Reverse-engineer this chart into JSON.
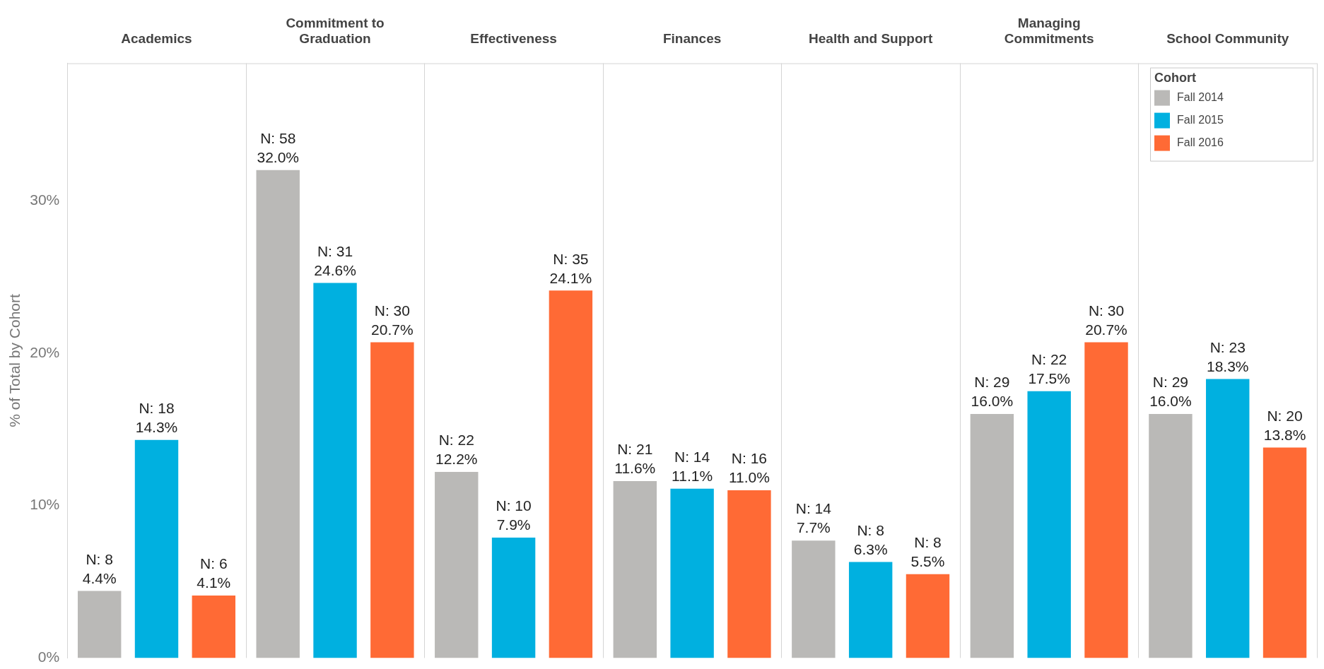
{
  "chart_data": {
    "type": "bar",
    "ylabel": "% of Total by Cohort",
    "legend_title": "Cohort",
    "legend": "top right",
    "categories": [
      "Academics",
      "Commitment to Graduation",
      "Effectiveness",
      "Finances",
      "Health and Support",
      "Managing Commitments",
      "School Community"
    ],
    "ylim": [
      0,
      39
    ],
    "yticks": [
      {
        "value": 0,
        "label": "0%"
      },
      {
        "value": 10,
        "label": "10%"
      },
      {
        "value": 20,
        "label": "20%"
      },
      {
        "value": 30,
        "label": "30%"
      }
    ],
    "series": [
      {
        "name": "Fall 2014",
        "color": "#bab9b7",
        "values": [
          4.4,
          32.0,
          12.2,
          11.6,
          7.7,
          16.0,
          16.0
        ],
        "value_labels": [
          "N: 8\n4.4%",
          "N: 58\n32.0%",
          "N: 22\n12.2%",
          "N: 21\n11.6%",
          "N: 14\n7.7%",
          "N: 29\n16.0%",
          "N: 29\n16.0%"
        ]
      },
      {
        "name": "Fall 2015",
        "color": "#00b0e0",
        "values": [
          14.3,
          24.6,
          7.9,
          11.1,
          6.3,
          17.5,
          18.3
        ],
        "value_labels": [
          "N: 18\n14.3%",
          "N: 31\n24.6%",
          "N: 10\n7.9%",
          "N: 14\n11.1%",
          "N: 8\n6.3%",
          "N: 22\n17.5%",
          "N: 23\n18.3%"
        ]
      },
      {
        "name": "Fall 2016",
        "color": "#ff6a35",
        "values": [
          4.1,
          20.7,
          24.1,
          11.0,
          5.5,
          20.7,
          13.8
        ],
        "value_labels": [
          "N: 6\n4.1%",
          "N: 30\n20.7%",
          "N: 35\n24.1%",
          "N: 16\n11.0%",
          "N: 8\n5.5%",
          "N: 30\n20.7%",
          "N: 20\n13.8%"
        ]
      }
    ]
  }
}
